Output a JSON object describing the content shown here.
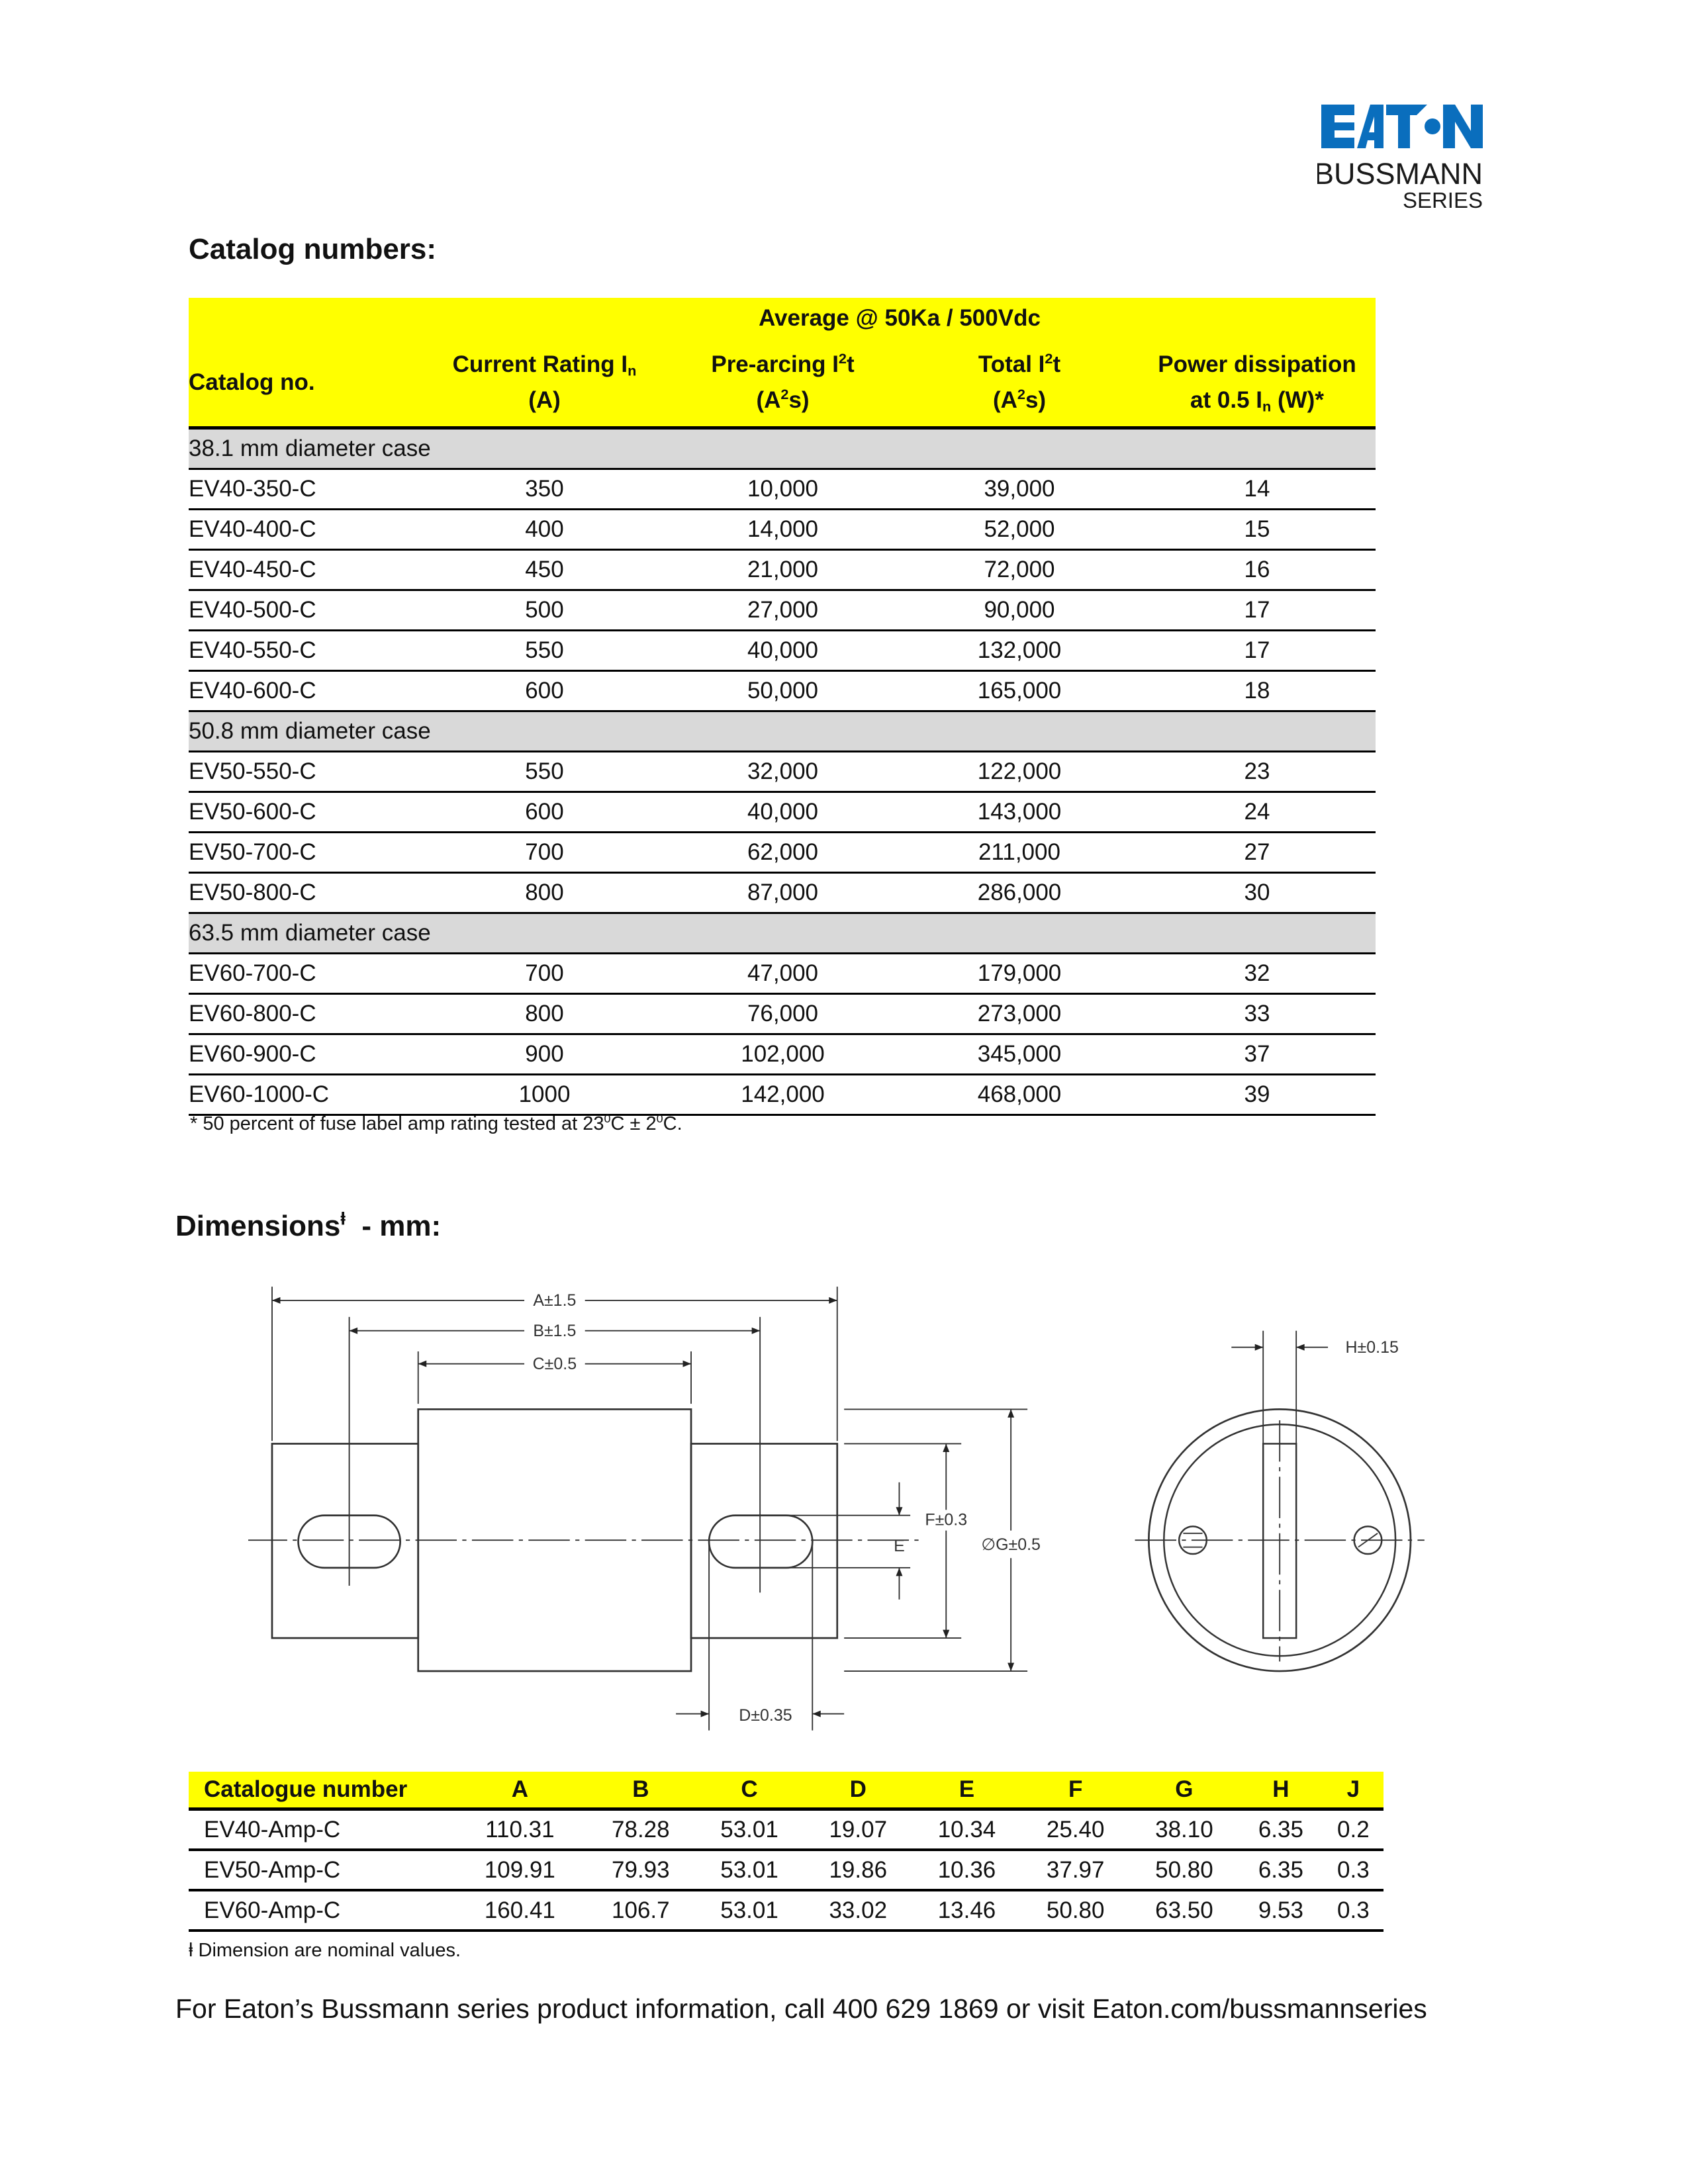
{
  "logo": {
    "brand": "EATON",
    "line1": "BUSSMANN",
    "line2": "SERIES",
    "brand_color": "#0a6ebd"
  },
  "catalog": {
    "title": "Catalog numbers:",
    "header_group": "Average @ 50Ka / 500Vdc",
    "columns": {
      "catalog": "Catalog no.",
      "current_line1": "Current Rating I",
      "current_sub": "n",
      "current_line2": "(A)",
      "prearc_line1a": "Pre-arcing I",
      "prearc_sup": "2",
      "prearc_line1b": "t",
      "prearc_line2a": "(A",
      "prearc_line2b": "s)",
      "total_line1a": "Total I",
      "total_sup": "2",
      "total_line1b": "t",
      "total_line2a": "(A",
      "total_line2b": "s)",
      "power_line1": "Power dissipation",
      "power_line2a": "at 0.5 I",
      "power_sub": "n",
      "power_line2b": " (W)*"
    },
    "groups": [
      {
        "label": "38.1 mm diameter case",
        "rows": [
          [
            "EV40-350-C",
            "350",
            "10,000",
            "39,000",
            "14"
          ],
          [
            "EV40-400-C",
            "400",
            "14,000",
            "52,000",
            "15"
          ],
          [
            "EV40-450-C",
            "450",
            "21,000",
            "72,000",
            "16"
          ],
          [
            "EV40-500-C",
            "500",
            "27,000",
            "90,000",
            "17"
          ],
          [
            "EV40-550-C",
            "550",
            "40,000",
            "132,000",
            "17"
          ],
          [
            "EV40-600-C",
            "600",
            "50,000",
            "165,000",
            "18"
          ]
        ]
      },
      {
        "label": "50.8 mm diameter case",
        "rows": [
          [
            "EV50-550-C",
            "550",
            "32,000",
            "122,000",
            "23"
          ],
          [
            "EV50-600-C",
            "600",
            "40,000",
            "143,000",
            "24"
          ],
          [
            "EV50-700-C",
            "700",
            "62,000",
            "211,000",
            "27"
          ],
          [
            "EV50-800-C",
            "800",
            "87,000",
            "286,000",
            "30"
          ]
        ]
      },
      {
        "label": "63.5 mm diameter case",
        "rows": [
          [
            "EV60-700-C",
            "700",
            "47,000",
            "179,000",
            "32"
          ],
          [
            "EV60-800-C",
            "800",
            "76,000",
            "273,000",
            "33"
          ],
          [
            "EV60-900-C",
            "900",
            "102,000",
            "345,000",
            "37"
          ],
          [
            "EV60-1000-C",
            "1000",
            "142,000",
            "468,000",
            "39"
          ]
        ]
      }
    ],
    "footnote_a": "* 50 percent of fuse label amp rating tested at 23",
    "footnote_sup1": "0",
    "footnote_b": "C ± 2",
    "footnote_sup2": "0",
    "footnote_c": "C."
  },
  "dimensions": {
    "title": "Dimensions",
    "title_mark": "ⱡ",
    "title_suffix": "  - mm:",
    "drawing_labels": {
      "a": "A±1.5",
      "b": "B±1.5",
      "c": "C±0.5",
      "d": "D±0.35",
      "e": "E",
      "f": "F±0.3",
      "g": "∅G±0.5",
      "h": "H±0.15"
    },
    "columns": [
      "Catalogue number",
      "A",
      "B",
      "C",
      "D",
      "E",
      "F",
      "G",
      "H",
      "J"
    ],
    "rows": [
      [
        "EV40-Amp-C",
        "110.31",
        "78.28",
        "53.01",
        "19.07",
        "10.34",
        "25.40",
        "38.10",
        "6.35",
        "0.2"
      ],
      [
        "EV50-Amp-C",
        "109.91",
        "79.93",
        "53.01",
        "19.86",
        "10.36",
        "37.97",
        "50.80",
        "6.35",
        "0.3"
      ],
      [
        "EV60-Amp-C",
        "160.41",
        "106.7",
        "53.01",
        "33.02",
        "13.46",
        "50.80",
        "63.50",
        "9.53",
        "0.3"
      ]
    ],
    "footnote": "ⱡ Dimension are nominal values."
  },
  "footer": "For Eaton’s Bussmann series product information, call 400 629 1869 or visit Eaton.com/bussmannseries"
}
